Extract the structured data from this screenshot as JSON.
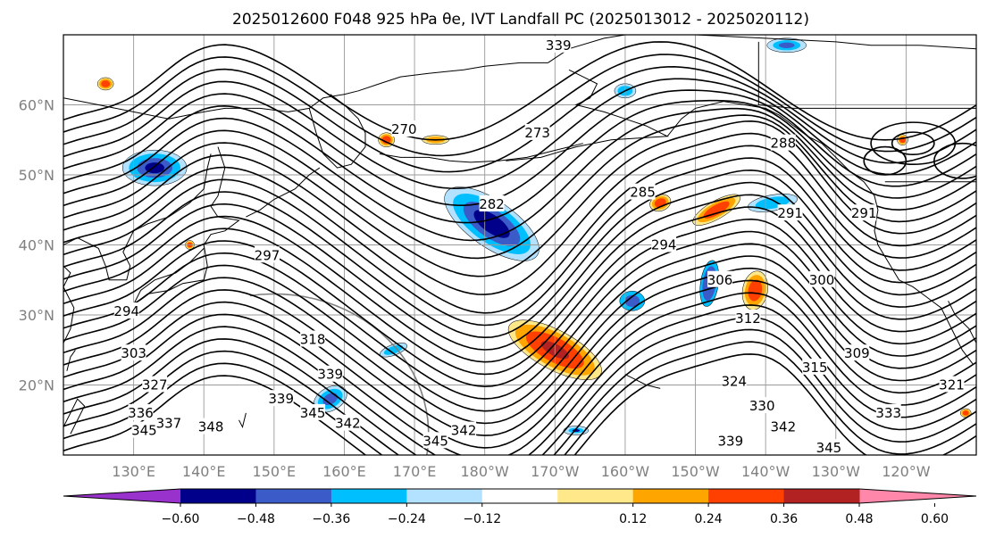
{
  "chart_data": {
    "type": "contour_map",
    "title": "2025012600 F048 925 hPa θe, IVT Landfall PC (2025013012 - 2025020112)",
    "lat_labels": [
      "60°N",
      "50°N",
      "40°N",
      "30°N",
      "20°N"
    ],
    "lon_labels": [
      "130°E",
      "140°E",
      "150°E",
      "160°E",
      "170°E",
      "180°W",
      "170°W",
      "160°W",
      "150°W",
      "140°W",
      "130°W",
      "120°W"
    ],
    "lon_range": [
      120,
      250
    ],
    "lat_range": [
      10,
      70
    ],
    "contour_labels": [
      {
        "text": "270",
        "lon": 168.5,
        "lat": 56.5
      },
      {
        "text": "273",
        "lon": 187.5,
        "lat": 56
      },
      {
        "text": "282",
        "lon": 181,
        "lat": 45.8
      },
      {
        "text": "285",
        "lon": 202.5,
        "lat": 47.5
      },
      {
        "text": "288",
        "lon": 222.5,
        "lat": 54.5
      },
      {
        "text": "291",
        "lon": 223.5,
        "lat": 44.5
      },
      {
        "text": "291",
        "lon": 234,
        "lat": 44.5
      },
      {
        "text": "294",
        "lon": 205.5,
        "lat": 40
      },
      {
        "text": "297",
        "lon": 149,
        "lat": 38.5
      },
      {
        "text": "300",
        "lon": 228,
        "lat": 35
      },
      {
        "text": "306",
        "lon": 213.5,
        "lat": 35
      },
      {
        "text": "312",
        "lon": 217.5,
        "lat": 29.5
      },
      {
        "text": "294",
        "lon": 129,
        "lat": 30.5
      },
      {
        "text": "303",
        "lon": 130,
        "lat": 24.5
      },
      {
        "text": "309",
        "lon": 233,
        "lat": 24.5
      },
      {
        "text": "315",
        "lon": 227,
        "lat": 22.5
      },
      {
        "text": "318",
        "lon": 155.5,
        "lat": 26.5
      },
      {
        "text": "321",
        "lon": 246.5,
        "lat": 20
      },
      {
        "text": "324",
        "lon": 215.5,
        "lat": 20.5
      },
      {
        "text": "327",
        "lon": 133,
        "lat": 20
      },
      {
        "text": "330",
        "lon": 219.5,
        "lat": 17
      },
      {
        "text": "333",
        "lon": 237.5,
        "lat": 16
      },
      {
        "text": "336",
        "lon": 131,
        "lat": 16
      },
      {
        "text": "339",
        "lon": 158,
        "lat": 21.5
      },
      {
        "text": "339",
        "lon": 151,
        "lat": 18
      },
      {
        "text": "339",
        "lon": 215,
        "lat": 12
      },
      {
        "text": "342",
        "lon": 160.5,
        "lat": 14.5
      },
      {
        "text": "342",
        "lon": 177,
        "lat": 13.5
      },
      {
        "text": "342",
        "lon": 222.5,
        "lat": 14
      },
      {
        "text": "345",
        "lon": 155.5,
        "lat": 16
      },
      {
        "text": "345",
        "lon": 173,
        "lat": 12
      },
      {
        "text": "345",
        "lon": 229,
        "lat": 11
      },
      {
        "text": "345",
        "lon": 131.5,
        "lat": 13.5
      },
      {
        "text": "348",
        "lon": 141,
        "lat": 14
      },
      {
        "text": "337",
        "lon": 135,
        "lat": 14.5
      },
      {
        "text": "339",
        "lon": 190.5,
        "lat": 68.5
      }
    ],
    "colorbar": {
      "ticks": [
        "−0.60",
        "−0.48",
        "−0.36",
        "−0.24",
        "−0.12",
        "0.12",
        "0.24",
        "0.36",
        "0.48",
        "0.60"
      ],
      "colors": [
        "#9932cc",
        "#00008b",
        "#3a5bc8",
        "#00bfff",
        "#b2e2ff",
        "#ffffff",
        "#ffe88a",
        "#ffa500",
        "#ff4000",
        "#b22222",
        "#ff88aa"
      ]
    }
  }
}
